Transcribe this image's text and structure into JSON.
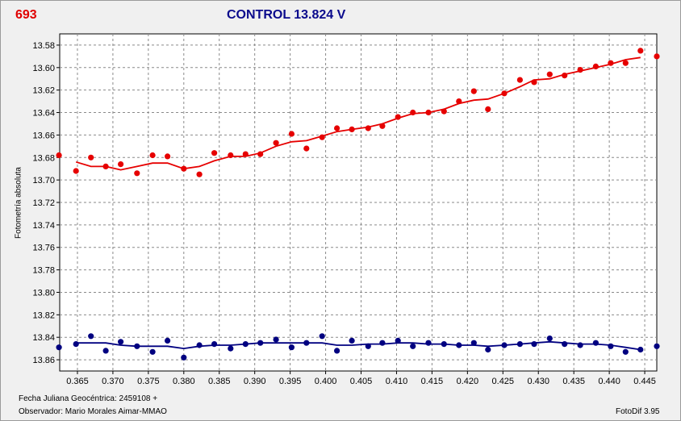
{
  "header": {
    "id": "693",
    "title": "CONTROL 13.824 V"
  },
  "footer": {
    "date_line": "Fecha Juliana Geocéntrica: 2459108 +",
    "observer_line": "Observador: Mario Morales Aimar-MMAO",
    "version": "FotoDif 3.95"
  },
  "colors": {
    "series1": "#e60000",
    "series2": "#000080",
    "grid": "#8a8a8a",
    "title": "#0a0a8c",
    "id": "#e00000"
  },
  "chart_data": {
    "type": "scatter",
    "title": "CONTROL 13.824 V",
    "xlabel": "",
    "ylabel": "Fotometría absoluta",
    "xlim": [
      0.3625,
      0.4467
    ],
    "ylim": [
      13.87,
      13.57
    ],
    "y_inverted": true,
    "grid": true,
    "x_ticks": [
      "0.365",
      "0.370",
      "0.375",
      "0.380",
      "0.385",
      "0.390",
      "0.395",
      "0.400",
      "0.405",
      "0.410",
      "0.415",
      "0.420",
      "0.425",
      "0.430",
      "0.435",
      "0.440",
      "0.445"
    ],
    "y_ticks": [
      "13.58",
      "13.60",
      "13.62",
      "13.64",
      "13.66",
      "13.68",
      "13.70",
      "13.72",
      "13.74",
      "13.76",
      "13.78",
      "13.80",
      "13.82",
      "13.84",
      "13.86"
    ],
    "series": [
      {
        "color": "#e60000",
        "points": [
          [
            0.3624,
            13.678
          ],
          [
            0.3648,
            13.692
          ],
          [
            0.3669,
            13.68
          ],
          [
            0.369,
            13.688
          ],
          [
            0.3711,
            13.686
          ],
          [
            0.3734,
            13.694
          ],
          [
            0.3756,
            13.678
          ],
          [
            0.3777,
            13.679
          ],
          [
            0.38,
            13.69
          ],
          [
            0.3822,
            13.695
          ],
          [
            0.3843,
            13.676
          ],
          [
            0.3866,
            13.678
          ],
          [
            0.3887,
            13.677
          ],
          [
            0.3908,
            13.677
          ],
          [
            0.393,
            13.667
          ],
          [
            0.3952,
            13.659
          ],
          [
            0.3973,
            13.672
          ],
          [
            0.3995,
            13.662
          ],
          [
            0.4016,
            13.654
          ],
          [
            0.4037,
            13.655
          ],
          [
            0.406,
            13.654
          ],
          [
            0.408,
            13.652
          ],
          [
            0.4102,
            13.644
          ],
          [
            0.4123,
            13.64
          ],
          [
            0.4145,
            13.64
          ],
          [
            0.4167,
            13.639
          ],
          [
            0.4188,
            13.63
          ],
          [
            0.4209,
            13.621
          ],
          [
            0.4229,
            13.637
          ],
          [
            0.4252,
            13.623
          ],
          [
            0.4274,
            13.611
          ],
          [
            0.4294,
            13.613
          ],
          [
            0.4316,
            13.606
          ],
          [
            0.4337,
            13.607
          ],
          [
            0.4359,
            13.602
          ],
          [
            0.4381,
            13.599
          ],
          [
            0.4402,
            13.596
          ],
          [
            0.4423,
            13.596
          ],
          [
            0.4444,
            13.585
          ],
          [
            0.4467,
            13.59
          ]
        ],
        "fit": [
          [
            0.3648,
            13.684
          ],
          [
            0.3669,
            13.688
          ],
          [
            0.369,
            13.688
          ],
          [
            0.3711,
            13.691
          ],
          [
            0.3734,
            13.688
          ],
          [
            0.3756,
            13.685
          ],
          [
            0.3777,
            13.685
          ],
          [
            0.38,
            13.69
          ],
          [
            0.3822,
            13.688
          ],
          [
            0.3843,
            13.683
          ],
          [
            0.3866,
            13.679
          ],
          [
            0.3887,
            13.679
          ],
          [
            0.3908,
            13.676
          ],
          [
            0.393,
            13.67
          ],
          [
            0.3952,
            13.666
          ],
          [
            0.3973,
            13.665
          ],
          [
            0.3995,
            13.661
          ],
          [
            0.4016,
            13.657
          ],
          [
            0.4037,
            13.655
          ],
          [
            0.406,
            13.653
          ],
          [
            0.408,
            13.65
          ],
          [
            0.4102,
            13.645
          ],
          [
            0.4123,
            13.641
          ],
          [
            0.4145,
            13.64
          ],
          [
            0.4167,
            13.637
          ],
          [
            0.4188,
            13.632
          ],
          [
            0.4209,
            13.629
          ],
          [
            0.4229,
            13.628
          ],
          [
            0.4252,
            13.623
          ],
          [
            0.4274,
            13.617
          ],
          [
            0.4294,
            13.611
          ],
          [
            0.4316,
            13.61
          ],
          [
            0.4337,
            13.606
          ],
          [
            0.4359,
            13.603
          ],
          [
            0.4381,
            13.6
          ],
          [
            0.4402,
            13.597
          ],
          [
            0.4423,
            13.593
          ],
          [
            0.4444,
            13.591
          ]
        ]
      },
      {
        "color": "#000080",
        "points": [
          [
            0.3624,
            13.849
          ],
          [
            0.3648,
            13.846
          ],
          [
            0.3669,
            13.839
          ],
          [
            0.369,
            13.852
          ],
          [
            0.3711,
            13.844
          ],
          [
            0.3734,
            13.848
          ],
          [
            0.3756,
            13.853
          ],
          [
            0.3777,
            13.843
          ],
          [
            0.38,
            13.858
          ],
          [
            0.3822,
            13.847
          ],
          [
            0.3843,
            13.846
          ],
          [
            0.3866,
            13.85
          ],
          [
            0.3887,
            13.846
          ],
          [
            0.3908,
            13.845
          ],
          [
            0.393,
            13.842
          ],
          [
            0.3952,
            13.849
          ],
          [
            0.3973,
            13.845
          ],
          [
            0.3995,
            13.839
          ],
          [
            0.4016,
            13.852
          ],
          [
            0.4037,
            13.843
          ],
          [
            0.406,
            13.848
          ],
          [
            0.408,
            13.845
          ],
          [
            0.4102,
            13.843
          ],
          [
            0.4123,
            13.848
          ],
          [
            0.4145,
            13.845
          ],
          [
            0.4167,
            13.846
          ],
          [
            0.4188,
            13.847
          ],
          [
            0.4209,
            13.845
          ],
          [
            0.4229,
            13.851
          ],
          [
            0.4252,
            13.847
          ],
          [
            0.4274,
            13.846
          ],
          [
            0.4294,
            13.846
          ],
          [
            0.4316,
            13.841
          ],
          [
            0.4337,
            13.846
          ],
          [
            0.4359,
            13.847
          ],
          [
            0.4381,
            13.845
          ],
          [
            0.4402,
            13.848
          ],
          [
            0.4423,
            13.853
          ],
          [
            0.4444,
            13.851
          ],
          [
            0.4467,
            13.848
          ]
        ],
        "fit": [
          [
            0.3648,
            13.845
          ],
          [
            0.3669,
            13.845
          ],
          [
            0.369,
            13.845
          ],
          [
            0.3711,
            13.847
          ],
          [
            0.3734,
            13.848
          ],
          [
            0.3756,
            13.848
          ],
          [
            0.3777,
            13.848
          ],
          [
            0.38,
            13.85
          ],
          [
            0.3822,
            13.848
          ],
          [
            0.3843,
            13.847
          ],
          [
            0.3866,
            13.847
          ],
          [
            0.3887,
            13.846
          ],
          [
            0.3908,
            13.845
          ],
          [
            0.393,
            13.845
          ],
          [
            0.3952,
            13.845
          ],
          [
            0.3973,
            13.845
          ],
          [
            0.3995,
            13.845
          ],
          [
            0.4016,
            13.847
          ],
          [
            0.4037,
            13.847
          ],
          [
            0.406,
            13.846
          ],
          [
            0.408,
            13.846
          ],
          [
            0.4102,
            13.845
          ],
          [
            0.4123,
            13.845
          ],
          [
            0.4145,
            13.846
          ],
          [
            0.4167,
            13.846
          ],
          [
            0.4188,
            13.847
          ],
          [
            0.4209,
            13.847
          ],
          [
            0.4229,
            13.848
          ],
          [
            0.4252,
            13.847
          ],
          [
            0.4274,
            13.846
          ],
          [
            0.4294,
            13.845
          ],
          [
            0.4316,
            13.844
          ],
          [
            0.4337,
            13.845
          ],
          [
            0.4359,
            13.846
          ],
          [
            0.4381,
            13.846
          ],
          [
            0.4402,
            13.847
          ],
          [
            0.4423,
            13.849
          ],
          [
            0.4444,
            13.851
          ]
        ]
      }
    ]
  }
}
